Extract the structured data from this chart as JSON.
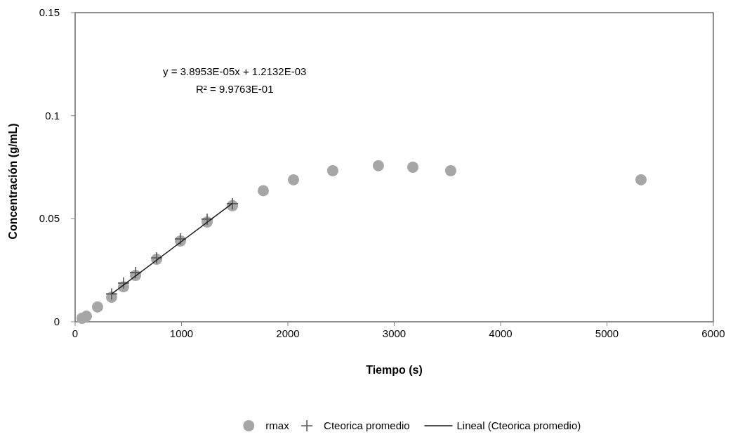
{
  "chart_data": {
    "type": "scatter",
    "xlabel": "Tiempo (s)",
    "ylabel": "Concentración (g/mL)",
    "xlim": [
      0,
      6000
    ],
    "xticks": [
      0,
      1000,
      2000,
      3000,
      4000,
      5000,
      6000
    ],
    "ylim": [
      0,
      0.15
    ],
    "yticks": [
      0,
      0.05,
      0.1,
      0.15
    ],
    "grid": false,
    "legend": "bottom",
    "annotations": [
      "y = 3.8953E-05x + 1.2132E-03",
      "R² = 9.9763E-01"
    ],
    "series": [
      {
        "name": "rmax",
        "marker": "circle",
        "color": "#a6a6a6",
        "x": [
          66,
          106,
          211,
          343,
          455,
          568,
          766,
          990,
          1241,
          1479,
          1769,
          2053,
          2422,
          2851,
          3175,
          3531,
          5320
        ],
        "values": [
          0.0017,
          0.0027,
          0.0072,
          0.0119,
          0.017,
          0.0225,
          0.0303,
          0.0392,
          0.0484,
          0.0563,
          0.0636,
          0.0689,
          0.0733,
          0.0757,
          0.075,
          0.0733,
          0.0689
        ]
      },
      {
        "name": "Cteorica promedio",
        "marker": "cross",
        "color": "#595959",
        "x": [
          343,
          455,
          568,
          766,
          990,
          1241,
          1479
        ],
        "values": [
          0.0135,
          0.0188,
          0.0239,
          0.031,
          0.0402,
          0.0498,
          0.0573
        ]
      },
      {
        "name": "Lineal (Cteorica promedio)",
        "type": "line",
        "marker": "none",
        "line_style": "solid",
        "color": "#1a1a1a",
        "x": [
          343,
          1479
        ],
        "values": [
          0.0135,
          0.0575
        ]
      }
    ]
  }
}
